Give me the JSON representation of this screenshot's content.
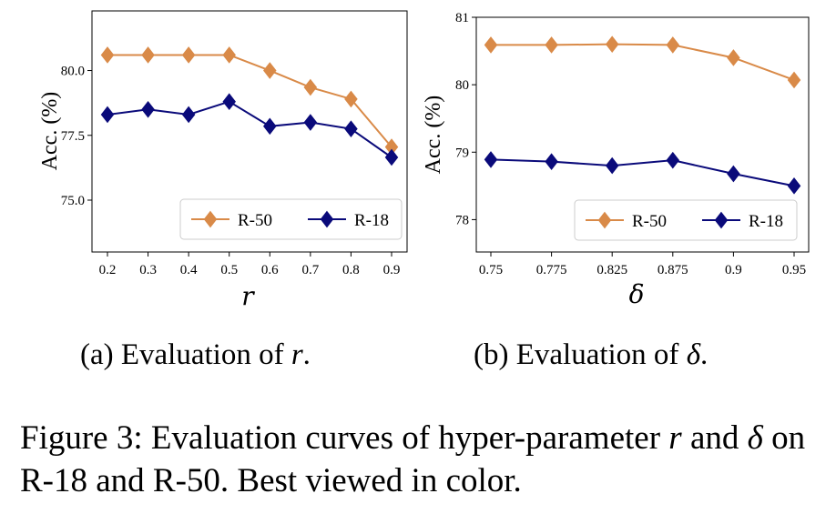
{
  "chart_data": [
    {
      "type": "line",
      "ylabel": "Acc. (%)",
      "xlabel": "r",
      "x": [
        0.2,
        0.3,
        0.4,
        0.5,
        0.6,
        0.7,
        0.8,
        0.9
      ],
      "x_tick_labels": [
        "0.2",
        "0.3",
        "0.4",
        "0.5",
        "0.6",
        "0.7",
        "0.8",
        "0.9"
      ],
      "ylim": [
        73.0,
        82.3
      ],
      "y_ticks": [
        75.0,
        77.5,
        80.0
      ],
      "y_tick_labels": [
        "75.0",
        "77.5",
        "80.0"
      ],
      "grid": false,
      "legend_position": "bottom-right",
      "series": [
        {
          "name": "R-50",
          "color": "#d98a48",
          "marker": "diamond",
          "values": [
            80.6,
            80.6,
            80.6,
            80.6,
            80.0,
            79.35,
            78.9,
            77.05
          ]
        },
        {
          "name": "R-18",
          "color": "#0a0a7a",
          "marker": "diamond",
          "values": [
            78.3,
            78.5,
            78.3,
            78.8,
            77.85,
            78.0,
            77.75,
            76.65
          ]
        }
      ]
    },
    {
      "type": "line",
      "ylabel": "Acc. (%)",
      "xlabel": "δ",
      "x": [
        0.75,
        0.775,
        0.825,
        0.875,
        0.9,
        0.95
      ],
      "x_tick_labels": [
        "0.75",
        "0.775",
        "0.825",
        "0.875",
        "0.9",
        "0.95"
      ],
      "ylim": [
        77.52,
        81.0
      ],
      "y_ticks": [
        78,
        79,
        80,
        81
      ],
      "y_tick_labels": [
        "78",
        "79",
        "80",
        "81"
      ],
      "grid": false,
      "legend_position": "bottom-right",
      "series": [
        {
          "name": "R-50",
          "color": "#d98a48",
          "marker": "diamond",
          "values": [
            80.59,
            80.59,
            80.6,
            80.59,
            80.4,
            80.07
          ]
        },
        {
          "name": "R-18",
          "color": "#0a0a7a",
          "marker": "diamond",
          "values": [
            78.89,
            78.86,
            78.8,
            78.88,
            78.68,
            78.5
          ]
        }
      ]
    }
  ],
  "captions": {
    "a_prefix": "(a) Evaluation of ",
    "a_var": "r",
    "a_suffix": ".",
    "b_prefix": "(b) Evaluation of ",
    "b_var": "δ",
    "b_suffix": ".",
    "figure_part1": "Figure 3: Evaluation curves of hyper-parameter ",
    "figure_var1": "r",
    "figure_part2": " and ",
    "figure_var2": "δ",
    "figure_part3": " on R-18 and R-50. Best viewed in color."
  }
}
